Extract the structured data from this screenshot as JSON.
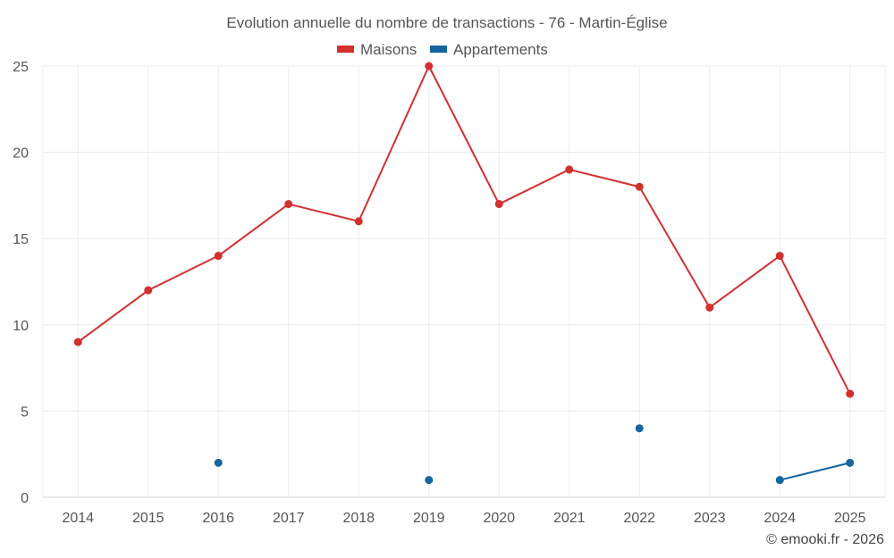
{
  "chart_data": {
    "type": "line",
    "title": "Evolution annuelle du nombre de transactions - 76 - Martin-Église",
    "categories": [
      "2014",
      "2015",
      "2016",
      "2017",
      "2018",
      "2019",
      "2020",
      "2021",
      "2022",
      "2023",
      "2024",
      "2025"
    ],
    "ylim": [
      0,
      25
    ],
    "yticks": [
      0,
      5,
      10,
      15,
      20,
      25
    ],
    "grid": true,
    "legend_position": "top-center",
    "series": [
      {
        "name": "Maisons",
        "color": "#d32f2f",
        "values": [
          9,
          12,
          14,
          17,
          16,
          25,
          17,
          19,
          18,
          11,
          14,
          6
        ]
      },
      {
        "name": "Appartements",
        "color": "#1565a0",
        "values": [
          null,
          null,
          2,
          null,
          null,
          1,
          null,
          null,
          4,
          null,
          1,
          2
        ]
      }
    ],
    "credit": "© emooki.fr - 2026"
  }
}
